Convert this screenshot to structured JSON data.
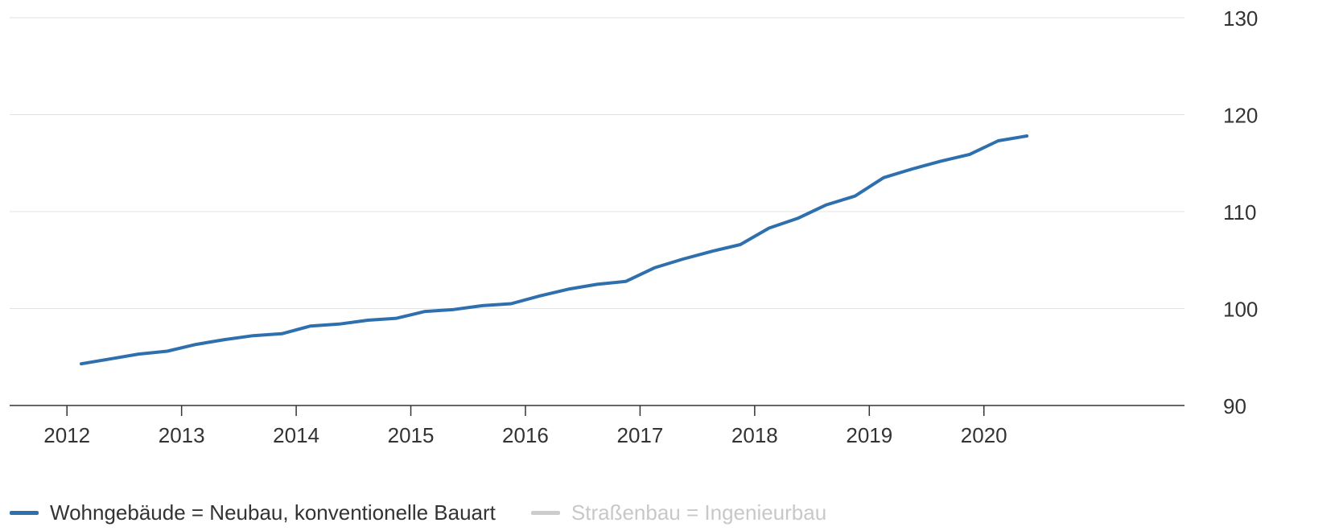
{
  "chart_data": {
    "type": "line",
    "title": "",
    "xlabel": "",
    "ylabel": "",
    "ylim": [
      90,
      130
    ],
    "y_ticks": [
      90,
      100,
      110,
      120,
      130
    ],
    "y_tick_labels": [
      "90",
      "100",
      "110",
      "120",
      "130"
    ],
    "y_axis_side": "right",
    "x_ticks": [
      2012,
      2013,
      2014,
      2015,
      2016,
      2017,
      2018,
      2019,
      2020
    ],
    "x_tick_labels": [
      "2012",
      "2013",
      "2014",
      "2015",
      "2016",
      "2017",
      "2018",
      "2019",
      "2020"
    ],
    "xlim": [
      2011.5,
      2021.75
    ],
    "grid": true,
    "legend_position": "bottom-left",
    "series": [
      {
        "name": "Wohngebäude = Neubau, konventionelle Bauart",
        "color": "#2e6fae",
        "visible": true,
        "x": [
          2012.125,
          2012.375,
          2012.625,
          2012.875,
          2013.125,
          2013.375,
          2013.625,
          2013.875,
          2014.125,
          2014.375,
          2014.625,
          2014.875,
          2015.125,
          2015.375,
          2015.625,
          2015.875,
          2016.125,
          2016.375,
          2016.625,
          2016.875,
          2017.125,
          2017.375,
          2017.625,
          2017.875,
          2018.125,
          2018.375,
          2018.625,
          2018.875,
          2019.125,
          2019.375,
          2019.625,
          2019.875,
          2020.125,
          2020.375
        ],
        "values": [
          94.3,
          94.8,
          95.3,
          95.6,
          96.3,
          96.8,
          97.2,
          97.4,
          98.2,
          98.4,
          98.8,
          99.0,
          99.7,
          99.9,
          100.3,
          100.5,
          101.3,
          102.0,
          102.5,
          102.8,
          104.2,
          105.1,
          105.9,
          106.6,
          108.3,
          109.3,
          110.7,
          111.6,
          113.5,
          114.4,
          115.2,
          115.9,
          117.3,
          117.8
        ]
      },
      {
        "name": "Straßenbau = Ingenieurbau",
        "color": "#cccccc",
        "visible": false,
        "x": [],
        "values": []
      }
    ]
  }
}
